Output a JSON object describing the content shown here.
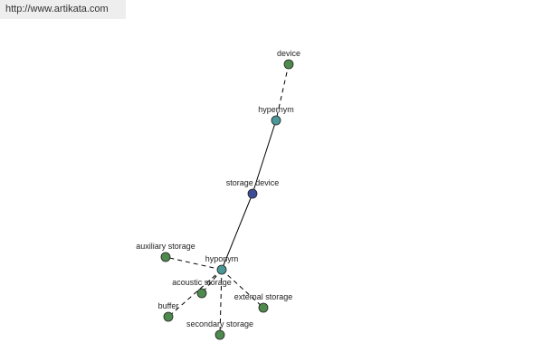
{
  "header": {
    "url": "http://www.artikata.com"
  },
  "nodes": [
    {
      "label": "device"
    },
    {
      "label": "hypernym"
    },
    {
      "label": "storage device"
    },
    {
      "label": "hyponym"
    },
    {
      "label": "auxiliary storage"
    },
    {
      "label": "acoustic storage"
    },
    {
      "label": "external storage"
    },
    {
      "label": "buffer"
    },
    {
      "label": "secondary storage"
    }
  ]
}
